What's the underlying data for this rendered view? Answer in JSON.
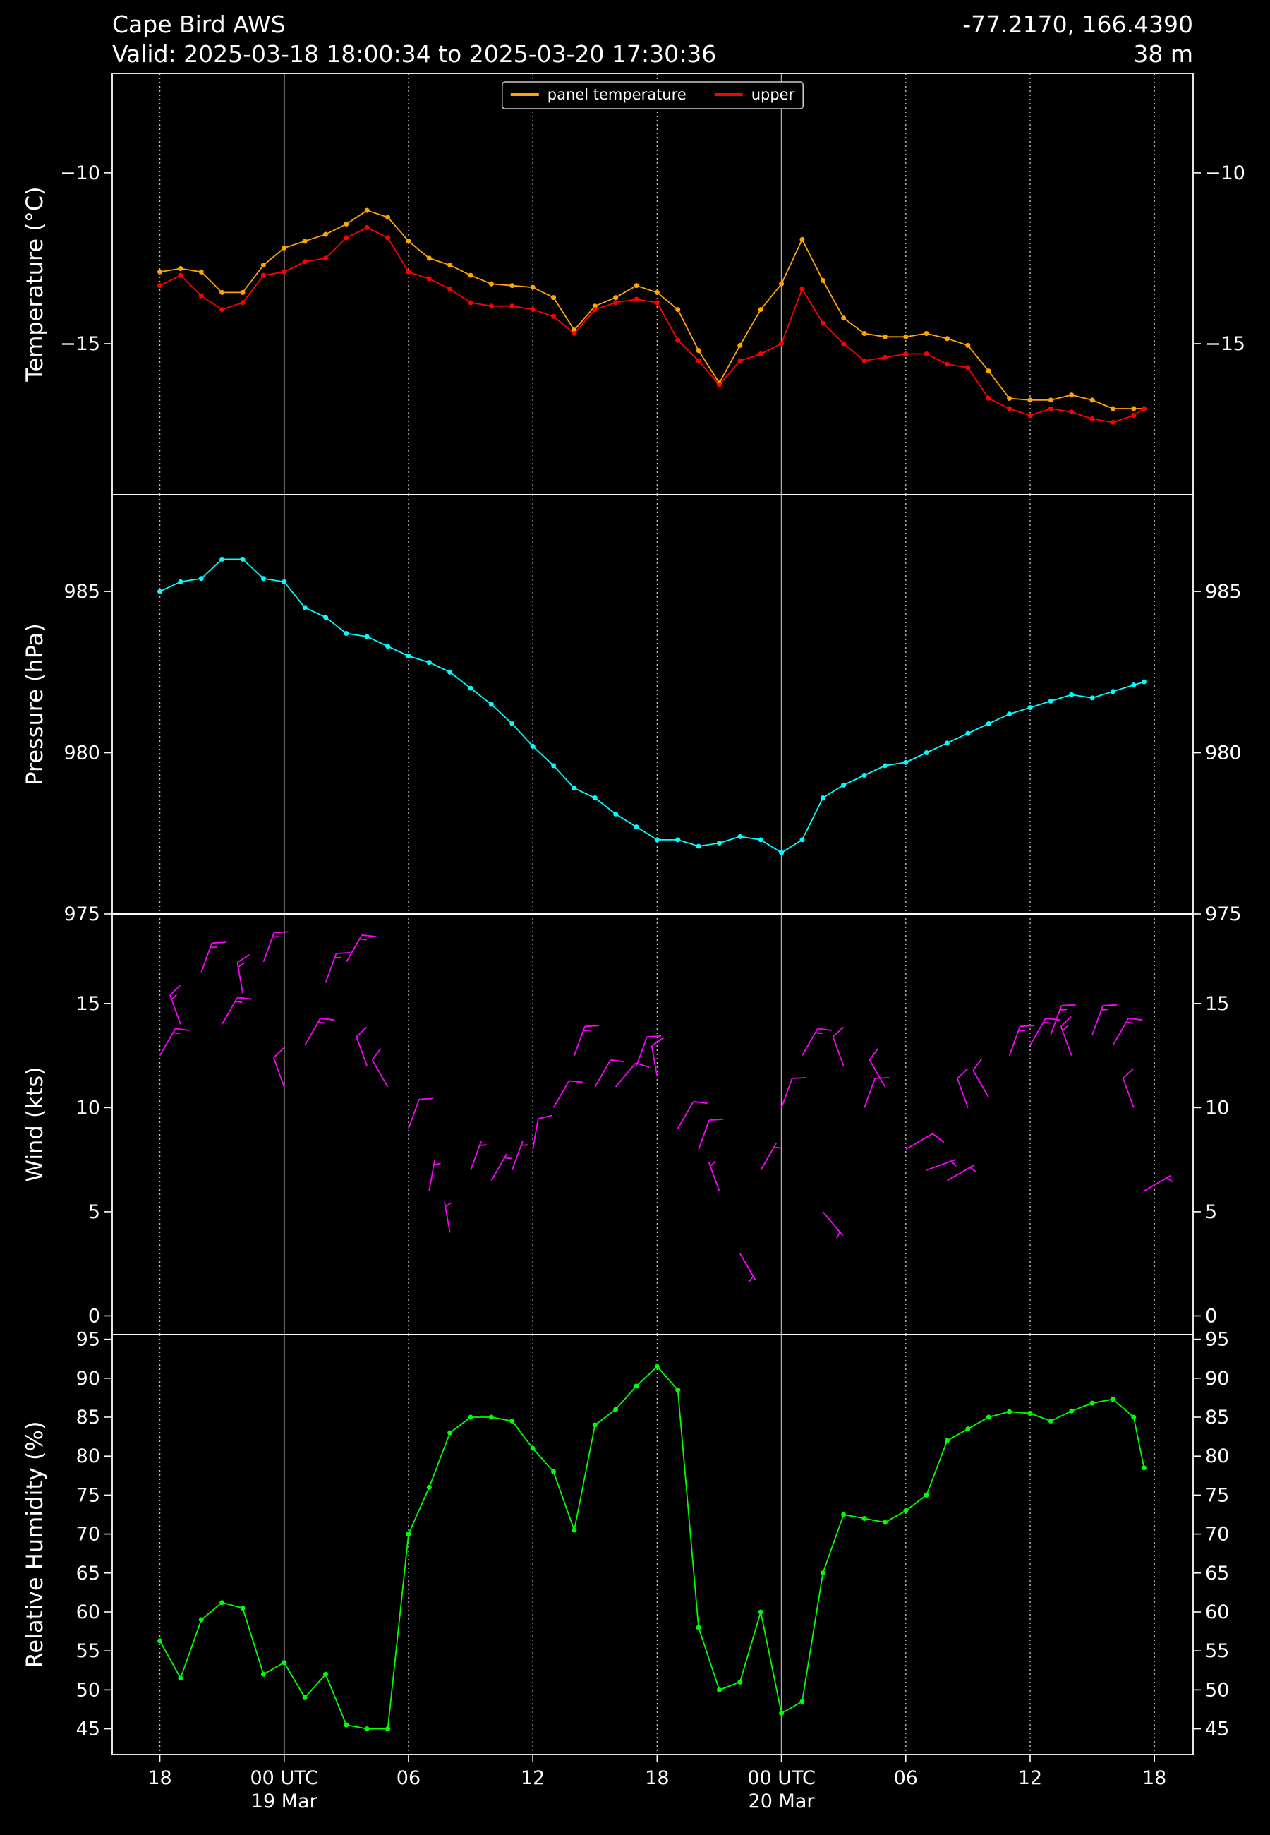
{
  "header": {
    "title": "Cape Bird AWS",
    "subtitle": "Valid: 2025-03-18 18:00:34 to 2025-03-20 17:30:36",
    "location": "-77.2170, 166.4390",
    "elevation": "38 m"
  },
  "x_axis": {
    "x": [
      "2025-03-18 18:00",
      "2025-03-18 19:00",
      "2025-03-18 20:00",
      "2025-03-18 21:00",
      "2025-03-18 22:00",
      "2025-03-18 23:00",
      "2025-03-19 00:00",
      "2025-03-19 01:00",
      "2025-03-19 02:00",
      "2025-03-19 03:00",
      "2025-03-19 04:00",
      "2025-03-19 05:00",
      "2025-03-19 06:00",
      "2025-03-19 07:00",
      "2025-03-19 08:00",
      "2025-03-19 09:00",
      "2025-03-19 10:00",
      "2025-03-19 11:00",
      "2025-03-19 12:00",
      "2025-03-19 13:00",
      "2025-03-19 14:00",
      "2025-03-19 15:00",
      "2025-03-19 16:00",
      "2025-03-19 17:00",
      "2025-03-19 18:00",
      "2025-03-19 19:00",
      "2025-03-19 20:00",
      "2025-03-19 21:00",
      "2025-03-19 22:00",
      "2025-03-19 23:00",
      "2025-03-20 00:00",
      "2025-03-20 01:00",
      "2025-03-20 02:00",
      "2025-03-20 03:00",
      "2025-03-20 04:00",
      "2025-03-20 05:00",
      "2025-03-20 06:00",
      "2025-03-20 07:00",
      "2025-03-20 08:00",
      "2025-03-20 09:00",
      "2025-03-20 10:00",
      "2025-03-20 11:00",
      "2025-03-20 12:00",
      "2025-03-20 13:00",
      "2025-03-20 14:00",
      "2025-03-20 15:00",
      "2025-03-20 16:00",
      "2025-03-20 17:00",
      "2025-03-20 17:30"
    ],
    "xlim": [
      "2025-03-18 15:42",
      "2025-03-20 19:52"
    ],
    "xticks": [
      {
        "value": "2025-03-18 18:00",
        "label": "18"
      },
      {
        "value": "2025-03-19 00:00",
        "label": "00 UTC",
        "date": "19 Mar"
      },
      {
        "value": "2025-03-19 06:00",
        "label": "06"
      },
      {
        "value": "2025-03-19 12:00",
        "label": "12"
      },
      {
        "value": "2025-03-19 18:00",
        "label": "18"
      },
      {
        "value": "2025-03-20 00:00",
        "label": "00 UTC",
        "date": "20 Mar"
      },
      {
        "value": "2025-03-20 06:00",
        "label": "06"
      },
      {
        "value": "2025-03-20 12:00",
        "label": "12"
      },
      {
        "value": "2025-03-20 18:00",
        "label": "18"
      }
    ]
  },
  "chart_data": [
    {
      "type": "line",
      "ylabel": "Temperature (°C)",
      "ylim": [
        -19.42,
        -7.09
      ],
      "yticks": [
        {
          "value": -10,
          "label": "−10"
        },
        {
          "value": -15,
          "label": "−15"
        }
      ],
      "legend": "upper center",
      "series": [
        {
          "name": "panel temperature",
          "color": "#ffa500",
          "values": [
            -12.9,
            -12.8,
            -12.9,
            -13.5,
            -13.5,
            -12.7,
            -12.2,
            -12.0,
            -11.8,
            -11.5,
            -11.1,
            -11.3,
            -12.0,
            -12.5,
            -12.7,
            -13.0,
            -13.25,
            -13.3,
            -13.35,
            -13.65,
            -14.6,
            -13.9,
            -13.65,
            -13.3,
            -13.5,
            -14.0,
            -15.2,
            -16.15,
            -15.05,
            -14.0,
            -13.25,
            -11.95,
            -13.15,
            -14.25,
            -14.7,
            -14.8,
            -14.8,
            -14.7,
            -14.85,
            -15.05,
            -15.8,
            -16.6,
            -16.65,
            -16.65,
            -16.5,
            -16.65,
            -16.9,
            -16.9,
            -16.9
          ]
        },
        {
          "name": "upper",
          "color": "#ff0000",
          "values": [
            -13.3,
            -13.0,
            -13.6,
            -14.0,
            -13.8,
            -13.0,
            -12.9,
            -12.6,
            -12.5,
            -11.9,
            -11.6,
            -11.9,
            -12.9,
            -13.1,
            -13.4,
            -13.8,
            -13.9,
            -13.9,
            -14.0,
            -14.2,
            -14.7,
            -14.0,
            -13.8,
            -13.7,
            -13.8,
            -14.9,
            -15.5,
            -16.2,
            -15.5,
            -15.3,
            -15.0,
            -13.4,
            -14.4,
            -15.0,
            -15.5,
            -15.4,
            -15.3,
            -15.3,
            -15.6,
            -15.7,
            -16.6,
            -16.9,
            -17.1,
            -16.9,
            -17.0,
            -17.2,
            -17.3,
            -17.1,
            -16.9
          ]
        }
      ]
    },
    {
      "type": "line",
      "ylabel": "Pressure (hPa)",
      "ylim": [
        975,
        988
      ],
      "yticks": [
        975,
        980,
        985
      ],
      "series": [
        {
          "color": "#00ffff",
          "values": [
            985.0,
            985.3,
            985.4,
            986.0,
            986.0,
            985.4,
            985.3,
            984.5,
            984.2,
            983.7,
            983.6,
            983.3,
            983.0,
            982.8,
            982.5,
            982.0,
            981.5,
            980.9,
            980.2,
            979.6,
            978.9,
            978.6,
            978.1,
            977.7,
            977.3,
            977.3,
            977.1,
            977.2,
            977.4,
            977.3,
            976.9,
            977.3,
            978.6,
            979.0,
            979.3,
            979.6,
            979.7,
            980.0,
            980.3,
            980.6,
            980.9,
            981.2,
            981.4,
            981.6,
            981.8,
            981.7,
            981.9,
            982.1,
            982.2
          ]
        }
      ]
    },
    {
      "type": "barbs",
      "ylabel": "Wind (kts)",
      "ylim": [
        -0.9,
        19.3
      ],
      "yticks": [
        0,
        5,
        10,
        15
      ],
      "series": [
        {
          "color": "#ff00ff",
          "values": [
            12.5,
            14,
            16.5,
            14,
            15.5,
            17,
            11,
            13,
            16,
            17,
            12,
            11,
            9,
            6,
            4,
            7,
            6.5,
            7,
            8,
            10,
            12.5,
            11,
            11,
            12,
            11.5,
            9,
            8,
            6,
            3,
            7,
            10,
            12.5,
            5,
            12,
            10,
            11,
            8,
            7,
            6.5,
            10,
            10.5,
            12.5,
            13,
            13.5,
            12.5,
            13.5,
            13,
            10,
            6
          ],
          "direction": [
            30,
            340,
            20,
            30,
            350,
            20,
            340,
            30,
            20,
            30,
            340,
            330,
            20,
            10,
            350,
            20,
            30,
            20,
            10,
            30,
            20,
            30,
            40,
            20,
            350,
            30,
            20,
            340,
            150,
            30,
            20,
            30,
            140,
            340,
            20,
            330,
            60,
            70,
            60,
            340,
            330,
            20,
            30,
            20,
            340,
            20,
            30,
            340,
            60
          ]
        }
      ]
    },
    {
      "type": "line",
      "ylabel": "Relative Humidity (%)",
      "ylim": [
        41.7,
        95.6
      ],
      "yticks": [
        45,
        50,
        55,
        60,
        65,
        70,
        75,
        80,
        85,
        90,
        95
      ],
      "series": [
        {
          "color": "#00ff00",
          "values": [
            56.3,
            51.5,
            59,
            61.2,
            60.5,
            52,
            53.5,
            49,
            52,
            45.5,
            45,
            45,
            70,
            76,
            83,
            85,
            85,
            84.5,
            81,
            78,
            70.5,
            84,
            86,
            89,
            91.5,
            88.5,
            58,
            50,
            51,
            60,
            47,
            48.5,
            65,
            72.5,
            72,
            71.5,
            73,
            75,
            82,
            83.5,
            85,
            85.7,
            85.5,
            84.5,
            85.8,
            86.8,
            87.3,
            85,
            78.5
          ]
        }
      ]
    }
  ]
}
